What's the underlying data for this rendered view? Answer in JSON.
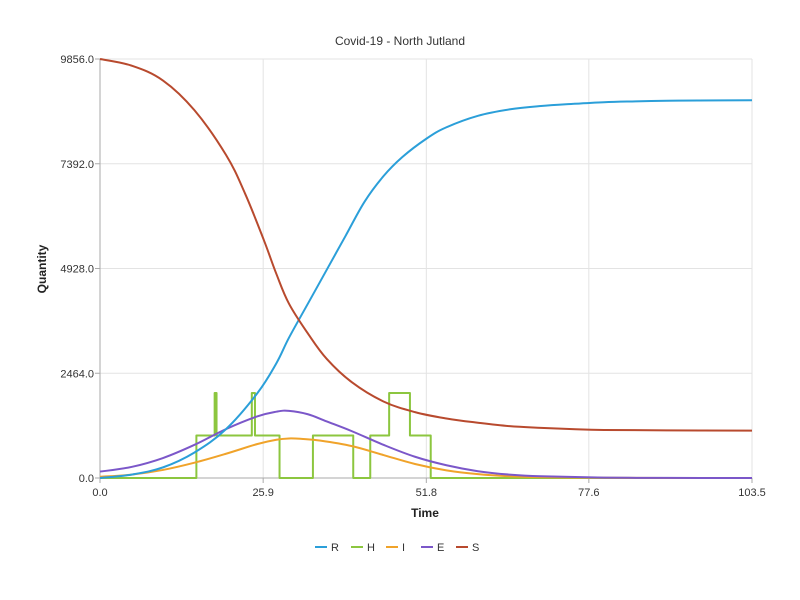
{
  "chart_data": {
    "type": "line",
    "title": "Covid-19 - North Jutland",
    "xlabel": "Time",
    "ylabel": "Quantity",
    "xlim": [
      0,
      103.5
    ],
    "ylim": [
      0,
      9856
    ],
    "x_ticks": [
      "0.0",
      "25.9",
      "51.8",
      "77.6",
      "103.5"
    ],
    "x_tick_values": [
      0,
      25.9,
      51.8,
      77.6,
      103.5
    ],
    "y_ticks": [
      "0.0",
      "2464.0",
      "4928.0",
      "7392.0",
      "9856.0"
    ],
    "y_tick_values": [
      0,
      2464,
      4928,
      7392,
      9856
    ],
    "grid": true,
    "legend_position": "bottom",
    "series": [
      {
        "name": "R",
        "color": "#2b9fd9",
        "step": false,
        "points": [
          [
            0,
            0
          ],
          [
            5,
            80
          ],
          [
            10,
            250
          ],
          [
            15,
            600
          ],
          [
            20,
            1150
          ],
          [
            25,
            2000
          ],
          [
            28,
            2700
          ],
          [
            30,
            3300
          ],
          [
            33,
            4100
          ],
          [
            36,
            4900
          ],
          [
            39,
            5700
          ],
          [
            42,
            6500
          ],
          [
            45,
            7100
          ],
          [
            48,
            7550
          ],
          [
            51.8,
            7980
          ],
          [
            55,
            8250
          ],
          [
            60,
            8520
          ],
          [
            65,
            8670
          ],
          [
            70,
            8750
          ],
          [
            75,
            8800
          ],
          [
            80,
            8840
          ],
          [
            85,
            8860
          ],
          [
            90,
            8875
          ],
          [
            95,
            8880
          ],
          [
            103.5,
            8885
          ]
        ]
      },
      {
        "name": "H",
        "color": "#8cc63f",
        "step": true,
        "points": [
          [
            0,
            0
          ],
          [
            15.3,
            0
          ],
          [
            15.3,
            1000
          ],
          [
            18.2,
            1000
          ],
          [
            18.2,
            2000
          ],
          [
            18.5,
            2000
          ],
          [
            18.5,
            1000
          ],
          [
            24.1,
            1000
          ],
          [
            24.1,
            2000
          ],
          [
            24.6,
            2000
          ],
          [
            24.6,
            1000
          ],
          [
            28.5,
            1000
          ],
          [
            28.5,
            0
          ],
          [
            33.8,
            0
          ],
          [
            33.8,
            1000
          ],
          [
            40.2,
            1000
          ],
          [
            40.2,
            0
          ],
          [
            42.9,
            0
          ],
          [
            42.9,
            1000
          ],
          [
            45.9,
            1000
          ],
          [
            45.9,
            2000
          ],
          [
            49.2,
            2000
          ],
          [
            49.2,
            1000
          ],
          [
            52.5,
            1000
          ],
          [
            52.5,
            0
          ],
          [
            103.5,
            0
          ]
        ]
      },
      {
        "name": "I",
        "color": "#f0a32a",
        "step": false,
        "points": [
          [
            0,
            30
          ],
          [
            5,
            80
          ],
          [
            10,
            190
          ],
          [
            15,
            360
          ],
          [
            20,
            570
          ],
          [
            25,
            800
          ],
          [
            28,
            900
          ],
          [
            30,
            930
          ],
          [
            32,
            920
          ],
          [
            35,
            880
          ],
          [
            40,
            750
          ],
          [
            45,
            540
          ],
          [
            50,
            330
          ],
          [
            55,
            180
          ],
          [
            60,
            90
          ],
          [
            65,
            40
          ],
          [
            70,
            20
          ],
          [
            80,
            5
          ],
          [
            90,
            1
          ],
          [
            103.5,
            0
          ]
        ]
      },
      {
        "name": "E",
        "color": "#7b57c9",
        "step": false,
        "points": [
          [
            0,
            150
          ],
          [
            5,
            260
          ],
          [
            10,
            470
          ],
          [
            15,
            780
          ],
          [
            20,
            1150
          ],
          [
            25,
            1450
          ],
          [
            28,
            1560
          ],
          [
            30,
            1580
          ],
          [
            33,
            1500
          ],
          [
            36,
            1330
          ],
          [
            40,
            1100
          ],
          [
            45,
            780
          ],
          [
            50,
            500
          ],
          [
            55,
            300
          ],
          [
            60,
            160
          ],
          [
            65,
            80
          ],
          [
            70,
            40
          ],
          [
            80,
            10
          ],
          [
            90,
            2
          ],
          [
            103.5,
            0
          ]
        ]
      },
      {
        "name": "S",
        "color": "#b84a2e",
        "step": false,
        "points": [
          [
            0,
            9856
          ],
          [
            5,
            9700
          ],
          [
            10,
            9350
          ],
          [
            15,
            8650
          ],
          [
            20,
            7600
          ],
          [
            23,
            6700
          ],
          [
            26,
            5600
          ],
          [
            28,
            4800
          ],
          [
            30,
            4100
          ],
          [
            33,
            3400
          ],
          [
            36,
            2800
          ],
          [
            40,
            2250
          ],
          [
            45,
            1800
          ],
          [
            50,
            1550
          ],
          [
            55,
            1400
          ],
          [
            60,
            1300
          ],
          [
            65,
            1220
          ],
          [
            70,
            1180
          ],
          [
            75,
            1150
          ],
          [
            80,
            1130
          ],
          [
            90,
            1120
          ],
          [
            103.5,
            1115
          ]
        ]
      }
    ]
  }
}
